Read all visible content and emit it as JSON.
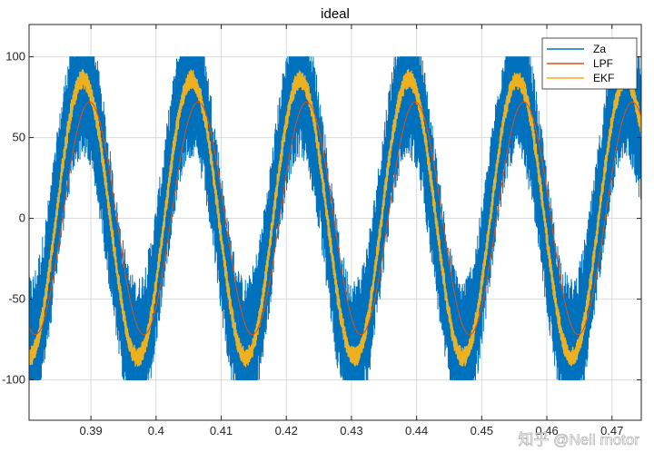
{
  "chart_data": {
    "type": "line",
    "title": "ideal",
    "xlabel": "",
    "ylabel": "",
    "xlim": [
      0.3805,
      0.4745
    ],
    "ylim": [
      -125,
      120
    ],
    "xticks": [
      0.39,
      0.4,
      0.41,
      0.42,
      0.43,
      0.44,
      0.45,
      0.46,
      0.47
    ],
    "yticks": [
      -100,
      -50,
      0,
      50,
      100
    ],
    "xtick_labels": [
      "0.39",
      "0.4",
      "0.41",
      "0.42",
      "0.43",
      "0.44",
      "0.45",
      "0.46",
      "0.47"
    ],
    "ytick_labels": [
      "-100",
      "-50",
      "0",
      "50",
      "100"
    ],
    "grid": true,
    "legend_position": "top-right",
    "series": [
      {
        "name": "Za",
        "color": "#0072BD",
        "signal": "noisy sinusoid, clipped at ±100",
        "frequency_hz": 60,
        "amplitude": 82,
        "phase_ref_peak_x": 0.3887,
        "noise_amplitude": 45,
        "clip": [
          -100,
          100
        ]
      },
      {
        "name": "LPF",
        "color": "#D95319",
        "signal": "lagged smooth sinusoid",
        "frequency_hz": 60,
        "amplitude": 72,
        "phase_ref_peak_x": 0.3898
      },
      {
        "name": "EKF",
        "color": "#EDB120",
        "signal": "sinusoid with small ripple",
        "frequency_hz": 60,
        "amplitude": 86,
        "phase_ref_peak_x": 0.3888,
        "ripple_amplitude": 6
      }
    ]
  },
  "watermark": {
    "text": "知乎 @Neil motor"
  }
}
